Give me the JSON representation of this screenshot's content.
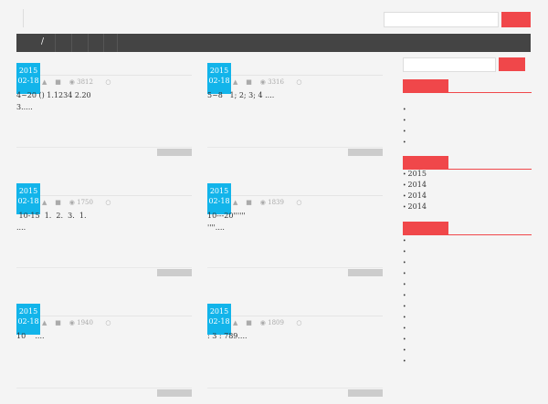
{
  "header": {
    "nav": [
      "/"
    ]
  },
  "posts": [
    {
      "year": "2015",
      "date": "02-18",
      "views": 3812,
      "excerpt": [
        "4~20 () 1.1234 2.20",
        "3....."
      ]
    },
    {
      "year": "2015",
      "date": "02-18",
      "views": 3316,
      "excerpt": [
        "5~8   1; 2; 3; 4 ...."
      ]
    },
    {
      "year": "2015",
      "date": "02-18",
      "views": 1750,
      "excerpt": [
        " 10-15  1.  2.  3.  1.",
        "...."
      ]
    },
    {
      "year": "2015",
      "date": "02-18",
      "views": 1839,
      "excerpt": [
        "10---20''''''",
        "''''...."
      ]
    },
    {
      "year": "2015",
      "date": "02-18",
      "views": 1940,
      "excerpt": [
        "10    ...."
      ]
    },
    {
      "year": "2015",
      "date": "02-18",
      "views": 1809,
      "excerpt": [
        ": 3 : 789...."
      ]
    }
  ],
  "sidebar": {
    "archives": [
      "2015",
      "2014",
      "2014",
      "2014"
    ]
  }
}
